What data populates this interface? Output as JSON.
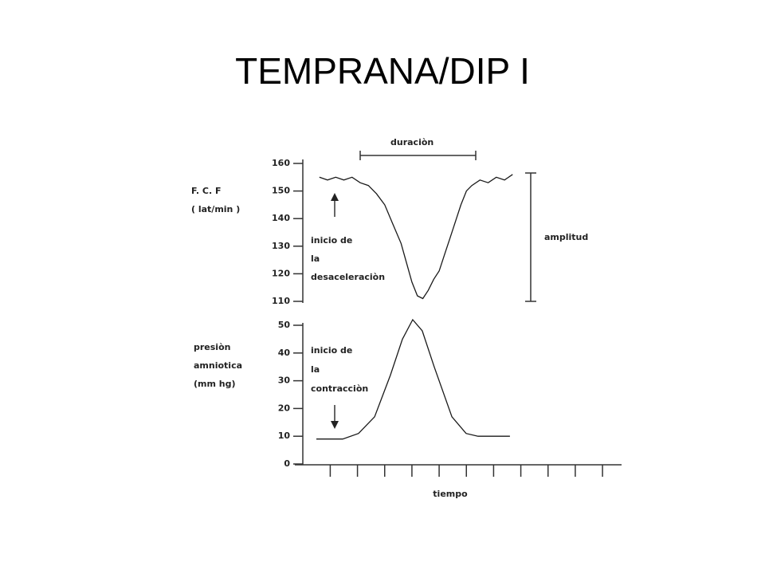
{
  "title": "TEMPRANA/DIP I",
  "chart_data": [
    {
      "type": "line",
      "color": "#1a1a1a",
      "ylabel": [
        "F. C. F",
        "( lat/min )"
      ],
      "annotations": [
        "duraciòn",
        "amplitud",
        "inicio de",
        "la",
        "desaceleraciòn"
      ],
      "xlim": [
        0,
        12
      ],
      "ylim": [
        110,
        160
      ],
      "yticks": [
        110,
        120,
        130,
        140,
        150,
        160
      ],
      "x": [
        0.9,
        1.2,
        1.5,
        1.8,
        2.1,
        2.4,
        2.7,
        3.0,
        3.3,
        3.6,
        3.9,
        4.1,
        4.3,
        4.5,
        4.7,
        4.9,
        5.1,
        5.3,
        5.5,
        5.7,
        5.9,
        6.1,
        6.3,
        6.5,
        6.8,
        7.1,
        7.4,
        7.7,
        8.0
      ],
      "values": [
        155,
        154,
        155,
        154,
        155,
        153,
        152,
        149,
        145,
        138,
        131,
        124,
        117,
        112,
        111,
        114,
        118,
        121,
        127,
        133,
        139,
        145,
        150,
        152,
        154,
        153,
        155,
        154,
        156
      ]
    },
    {
      "type": "line",
      "color": "#1a1a1a",
      "ylabel": [
        "presiòn",
        "amniotica",
        "(mm hg)"
      ],
      "annotations": [
        "inicio de",
        "la",
        "contracciòn"
      ],
      "xlabel": "tiempo",
      "xlim": [
        0,
        12
      ],
      "ylim": [
        0,
        50
      ],
      "yticks": [
        0,
        10,
        20,
        30,
        40,
        50
      ],
      "xticks": [
        1.3,
        2.3,
        3.3,
        4.3,
        5.3,
        6.3,
        7.3,
        8.3,
        9.3,
        10.3,
        11.3
      ],
      "x": [
        0.79,
        1.76,
        2.34,
        2.93,
        3.51,
        3.95,
        4.33,
        4.68,
        5.12,
        5.77,
        6.29,
        6.73,
        7.9
      ],
      "values": [
        9,
        9,
        11,
        17,
        32,
        45,
        52,
        48,
        35,
        17,
        11,
        10,
        10
      ]
    }
  ]
}
